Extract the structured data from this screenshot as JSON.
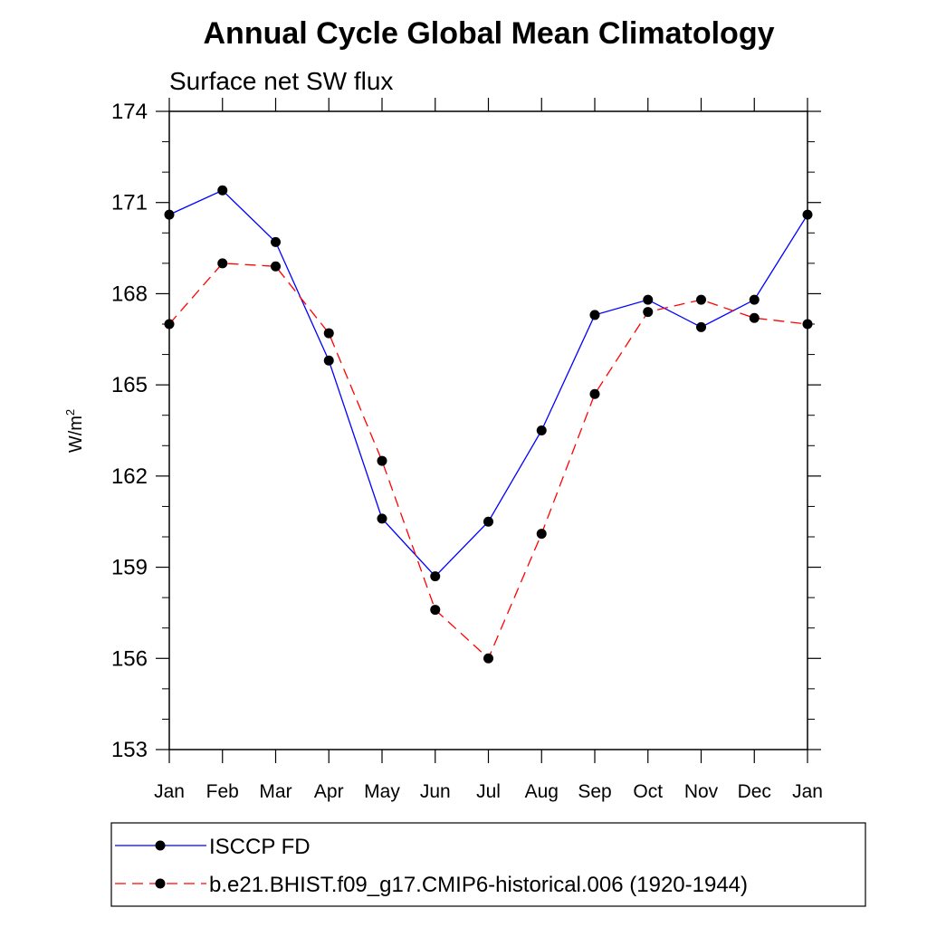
{
  "chart_data": {
    "type": "line",
    "title": "Annual Cycle Global Mean Climatology",
    "subtitle": "Surface net SW flux",
    "ylabel": "W/m",
    "ylabel_sup": "2",
    "xlabel": "",
    "categories": [
      "Jan",
      "Feb",
      "Mar",
      "Apr",
      "May",
      "Jun",
      "Jul",
      "Aug",
      "Sep",
      "Oct",
      "Nov",
      "Dec",
      "Jan"
    ],
    "ylim": [
      153,
      174
    ],
    "yticks": [
      153,
      156,
      159,
      162,
      165,
      168,
      171,
      174
    ],
    "grid": false,
    "legend_position": "bottom",
    "series": [
      {
        "name": "ISCCP FD",
        "color": "#0000ff",
        "dash": "solid",
        "values": [
          170.6,
          171.4,
          169.7,
          165.8,
          160.6,
          158.7,
          160.5,
          163.5,
          167.3,
          167.8,
          166.9,
          167.8,
          170.6
        ]
      },
      {
        "name": "b.e21.BHIST.f09_g17.CMIP6-historical.006 (1920-1944)",
        "color": "#ff0000",
        "dash": "dashed",
        "values": [
          167.0,
          169.0,
          168.9,
          166.7,
          162.5,
          157.6,
          156.0,
          160.1,
          164.7,
          167.4,
          167.8,
          167.2,
          167.0
        ]
      }
    ]
  }
}
